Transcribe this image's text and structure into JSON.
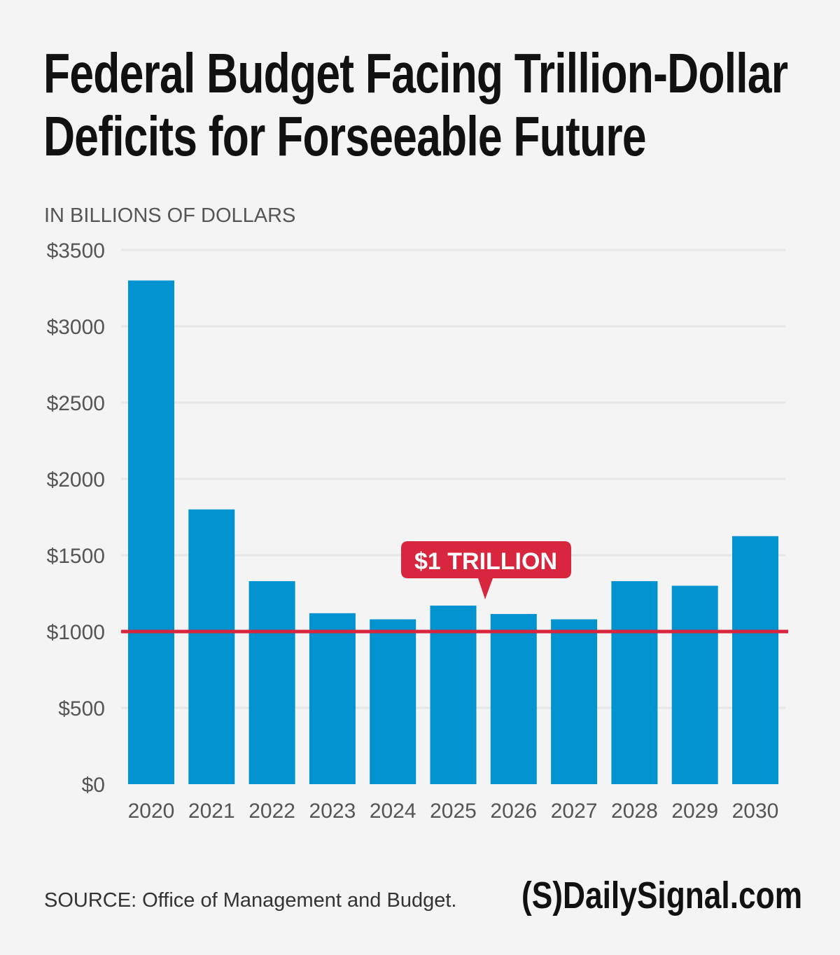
{
  "title_line1": "Federal Budget Facing Trillion-Dollar",
  "title_line2": "Deficits for Forseeable Future",
  "source": "SOURCE: Office of Management and Budget.",
  "logo": "(S)DailySignal.com",
  "chart_data": {
    "type": "bar",
    "ylabel": "IN BILLIONS OF DOLLARS",
    "ylim": [
      0,
      3500
    ],
    "yticks": [
      0,
      500,
      1000,
      1500,
      2000,
      2500,
      3000,
      3500
    ],
    "ytick_labels": [
      "$0",
      "$500",
      "$1000",
      "$1500",
      "$2000",
      "$2500",
      "$3000",
      "$3500"
    ],
    "categories": [
      "2020",
      "2021",
      "2022",
      "2023",
      "2024",
      "2025",
      "2026",
      "2027",
      "2028",
      "2029",
      "2030"
    ],
    "values": [
      3300,
      1800,
      1330,
      1120,
      1080,
      1170,
      1115,
      1080,
      1330,
      1300,
      1625
    ],
    "grid": true,
    "bar_color": "#0093d0",
    "reference_line": {
      "value": 1000,
      "label": "$1 TRILLION",
      "color": "#d7263d"
    }
  }
}
